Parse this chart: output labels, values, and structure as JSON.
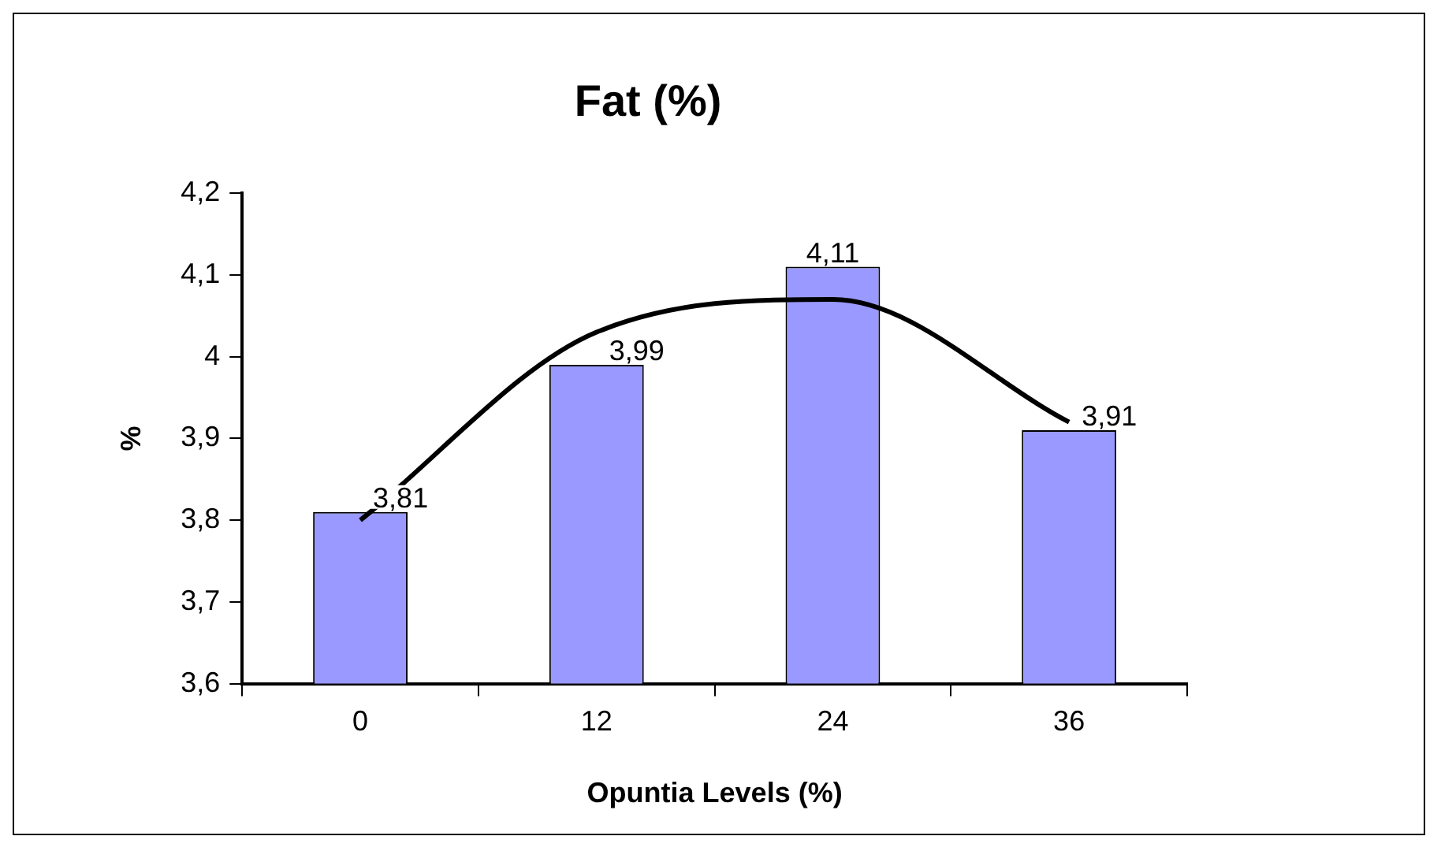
{
  "chart_data": {
    "type": "bar",
    "title": "Fat (%)",
    "xlabel": "Opuntia Levels (%)",
    "ylabel": "%",
    "categories": [
      "0",
      "12",
      "24",
      "36"
    ],
    "series": [
      {
        "color": "#9999ff",
        "values": [
          3.81,
          3.99,
          4.11,
          3.91
        ],
        "value_labels": [
          "3,81",
          "3,99",
          "4,11",
          "3,91"
        ]
      },
      {
        "type": "line",
        "color": "#000000",
        "x": [
          "0",
          "12",
          "24",
          "36"
        ],
        "values": [
          3.8,
          4.03,
          4.07,
          3.92
        ]
      }
    ],
    "ylim": [
      3.6,
      4.2
    ],
    "yticks": [
      {
        "value": 3.6,
        "label": "3,6"
      },
      {
        "value": 3.7,
        "label": "3,7"
      },
      {
        "value": 3.8,
        "label": "3,8"
      },
      {
        "value": 3.9,
        "label": "3,9"
      },
      {
        "value": 4,
        "label": "4"
      },
      {
        "value": 4.1,
        "label": "4,1"
      },
      {
        "value": 4.2,
        "label": "4,2"
      }
    ],
    "grid": false,
    "legend": false,
    "marker": "none",
    "line_style": "solid"
  }
}
